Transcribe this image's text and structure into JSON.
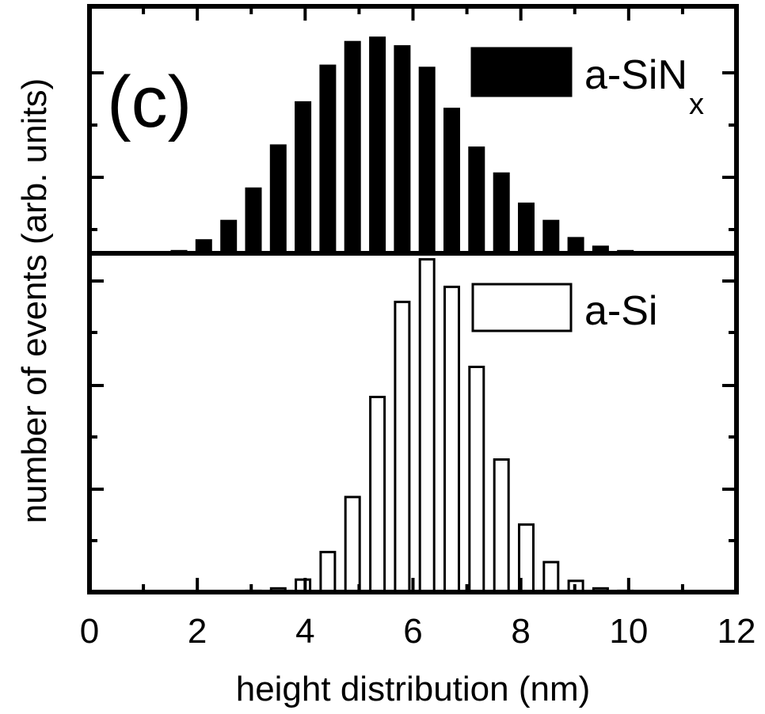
{
  "chart_data": {
    "type": "bar",
    "panel_label": "(c)",
    "xlabel": "height distribution (nm)",
    "ylabel": "number of events (arb. units)",
    "xlim": [
      0,
      12
    ],
    "xticks": [
      "0",
      "2",
      "4",
      "6",
      "8",
      "10",
      "12"
    ],
    "bin_width": 0.46,
    "grid": false,
    "panels": [
      {
        "legend": "a-SiN",
        "legend_sub": "x",
        "legend_placement": "top-right",
        "fill": "#000000",
        "ylim": [
          0,
          1.1
        ],
        "x": [
          1.66,
          2.12,
          2.58,
          3.04,
          3.5,
          3.96,
          4.42,
          4.88,
          5.34,
          5.8,
          6.26,
          6.72,
          7.18,
          7.64,
          8.1,
          8.56,
          9.02,
          9.48,
          9.94
        ],
        "values": [
          0.01,
          0.06,
          0.15,
          0.3,
          0.5,
          0.7,
          0.87,
          0.98,
          1.0,
          0.96,
          0.86,
          0.67,
          0.49,
          0.37,
          0.23,
          0.15,
          0.07,
          0.03,
          0.01
        ]
      },
      {
        "legend": "a-Si",
        "legend_sub": "",
        "legend_placement": "top-right",
        "fill": "#ffffff",
        "ylim": [
          0,
          1.3
        ],
        "x": [
          2.12,
          2.58,
          3.04,
          3.5,
          3.96,
          4.42,
          4.88,
          5.34,
          5.8,
          6.26,
          6.72,
          7.18,
          7.64,
          8.1,
          8.56,
          9.02,
          9.48,
          9.94
        ],
        "values": [
          0.0,
          0.0,
          0.005,
          0.015,
          0.05,
          0.16,
          0.38,
          0.78,
          1.16,
          1.33,
          1.22,
          0.9,
          0.53,
          0.27,
          0.12,
          0.045,
          0.015,
          0.005
        ]
      }
    ]
  }
}
